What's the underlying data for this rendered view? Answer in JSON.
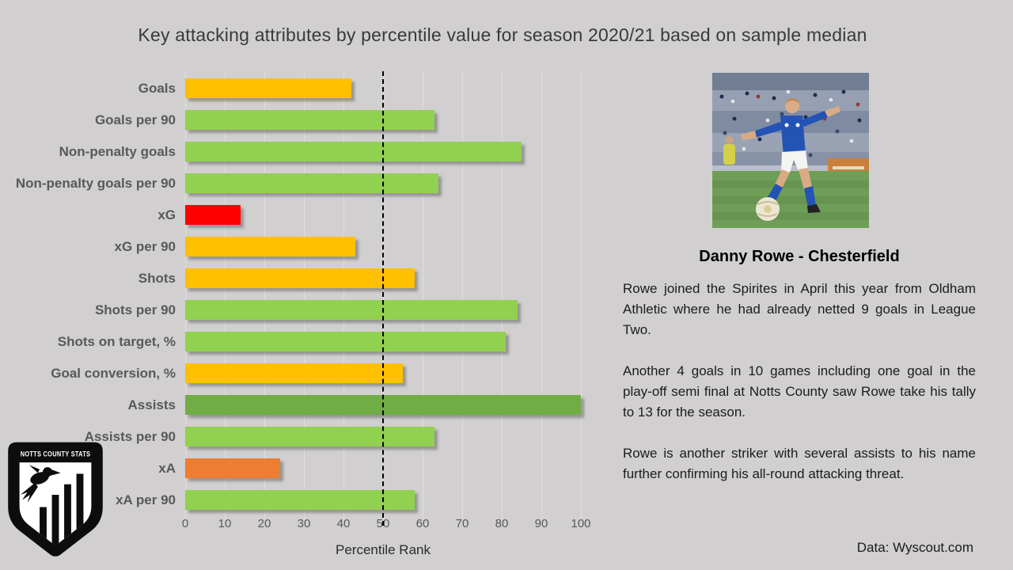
{
  "title": "Key attacking attributes by percentile value for season 2020/21 based on sample median",
  "chart_data": {
    "type": "bar",
    "orientation": "horizontal",
    "title": "Key attacking attributes by percentile value for season 2020/21 based on sample median",
    "categories": [
      "Goals",
      "Goals per 90",
      "Non-penalty goals",
      "Non-penalty goals per 90",
      "xG",
      "xG per 90",
      "Shots",
      "Shots per 90",
      "Shots on target, %",
      "Goal conversion, %",
      "Assists",
      "Assists per 90",
      "xA",
      "xA per 90"
    ],
    "values": [
      42,
      63,
      85,
      64,
      14,
      43,
      58,
      84,
      81,
      55,
      100,
      63,
      24,
      58
    ],
    "bar_colors": [
      "#FFC000",
      "#92D050",
      "#92D050",
      "#92D050",
      "#FF0000",
      "#FFC000",
      "#FFC000",
      "#92D050",
      "#92D050",
      "#FFC000",
      "#70AD47",
      "#92D050",
      "#ED7D31",
      "#92D050"
    ],
    "xlabel": "Percentile Rank",
    "ylabel": "",
    "xlim": [
      0,
      100
    ],
    "xticks": [
      0,
      10,
      20,
      30,
      40,
      50,
      60,
      70,
      80,
      90,
      100
    ],
    "reference_line": {
      "value": 50,
      "style": "dashed",
      "color": "#000000"
    },
    "grid": true,
    "legend": false
  },
  "panel": {
    "heading": "Danny Rowe - Chesterfield",
    "paragraphs": [
      "Rowe joined the Spirites in April this year from Oldham Athletic where he had already netted 9 goals in League Two.",
      "Another 4 goals in 10 games including one goal in the play-off semi final at Notts County saw Rowe take his tally to 13 for the season.",
      "Rowe is another striker with several assists to his name further confirming his all-round attacking threat."
    ]
  },
  "footer": {
    "data_source": "Data: Wyscout.com"
  },
  "logo": {
    "text": "NOTTS COUNTY STATS"
  },
  "colors": {
    "background": "#D1CFCF",
    "amber": "#FFC000",
    "light_green": "#92D050",
    "dark_green": "#70AD47",
    "red": "#FF0000",
    "orange": "#ED7D31",
    "label_gray": "#595959"
  }
}
